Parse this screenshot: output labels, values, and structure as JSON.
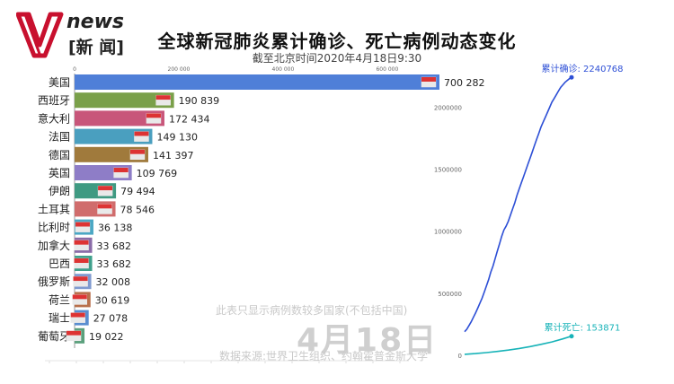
{
  "header": {
    "logo_text": "news",
    "logo_sub": "[新 闻]",
    "title": "全球新冠肺炎累计确诊、死亡病例动态变化",
    "subtitle": "截至北京时间2020年4月18日9:30"
  },
  "overlay": {
    "note": "此表只显示病例数较多国家(不包括中国)",
    "date": "4月18日",
    "source": "数据来源:世界卫生组织、约翰霍普金斯大学"
  },
  "colors": {
    "brand": "#c8102e",
    "confirmed_line": "#2d4fd6",
    "deaths_line": "#17b3b8"
  },
  "chart_data": [
    {
      "type": "bar",
      "orientation": "horizontal",
      "x_ticks": [
        "0",
        "200 000",
        "400 000",
        "600 000"
      ],
      "xlim": [
        0,
        800000
      ],
      "categories": [
        "美国",
        "西班牙",
        "意大利",
        "法国",
        "德国",
        "英国",
        "伊朗",
        "土耳其",
        "比利时",
        "加拿大",
        "巴西",
        "俄罗斯",
        "荷兰",
        "瑞士",
        "葡萄牙"
      ],
      "values": [
        700282,
        190839,
        172434,
        149130,
        141397,
        109769,
        79494,
        78546,
        36138,
        33682,
        33682,
        32008,
        30619,
        27078,
        19022
      ],
      "value_labels": [
        "700 282",
        "190 839",
        "172 434",
        "149 130",
        "141 397",
        "109 769",
        "79 494",
        "78 546",
        "36 138",
        "33 682",
        "33 682",
        "32 008",
        "30 619",
        "27 078",
        "19 022"
      ],
      "bar_colors": [
        "#4f7fd8",
        "#7aa04a",
        "#c8567a",
        "#4a9fbf",
        "#a07a3c",
        "#8e7dc7",
        "#3f9a82",
        "#d06c6c",
        "#4ba7c4",
        "#8a6ca8",
        "#3fa08c",
        "#7f9ad0",
        "#b8704c",
        "#5a8ed0",
        "#5aa07c"
      ],
      "flag_icons": [
        "us-flag-icon",
        "es-flag-icon",
        "it-flag-icon",
        "fr-flag-icon",
        "de-flag-icon",
        "gb-flag-icon",
        "ir-flag-icon",
        "tr-flag-icon",
        "be-flag-icon",
        "ca-flag-icon",
        "br-flag-icon",
        "ru-flag-icon",
        "nl-flag-icon",
        "ch-flag-icon",
        "pt-flag-icon"
      ]
    },
    {
      "type": "line",
      "y_ticks": [
        "0",
        "500000",
        "1000000",
        "1500000",
        "2000000"
      ],
      "ylim": [
        0,
        2300000
      ],
      "grid": false,
      "series": [
        {
          "name": "累计确诊",
          "end_label": "累计确诊: 2240768",
          "x": [
            0,
            1,
            2,
            3,
            4,
            5,
            6,
            7,
            8,
            9,
            10,
            11,
            12,
            13,
            14,
            15,
            16,
            17,
            18,
            19,
            20,
            21,
            22,
            23,
            24,
            25,
            26,
            27,
            28,
            29,
            30,
            31,
            32,
            33,
            34,
            35,
            36,
            37,
            38,
            39,
            40,
            41,
            42,
            43,
            44,
            45,
            46,
            47,
            48,
            49
          ],
          "values": [
            190000,
            210000,
            240000,
            270000,
            305000,
            340000,
            380000,
            420000,
            460000,
            510000,
            560000,
            610000,
            670000,
            720000,
            780000,
            840000,
            900000,
            960000,
            1010000,
            1040000,
            1080000,
            1130000,
            1180000,
            1230000,
            1290000,
            1340000,
            1390000,
            1440000,
            1490000,
            1540000,
            1590000,
            1640000,
            1690000,
            1740000,
            1790000,
            1840000,
            1880000,
            1920000,
            1960000,
            2000000,
            2040000,
            2070000,
            2100000,
            2130000,
            2160000,
            2180000,
            2200000,
            2215000,
            2230000,
            2240768
          ]
        },
        {
          "name": "累计死亡",
          "end_label": "累计死亡: 153871",
          "x": [
            0,
            5,
            10,
            15,
            20,
            25,
            30,
            35,
            40,
            45,
            49
          ],
          "values": [
            8000,
            14000,
            22000,
            31000,
            42000,
            55000,
            70000,
            88000,
            108000,
            132000,
            153871
          ]
        }
      ]
    }
  ]
}
